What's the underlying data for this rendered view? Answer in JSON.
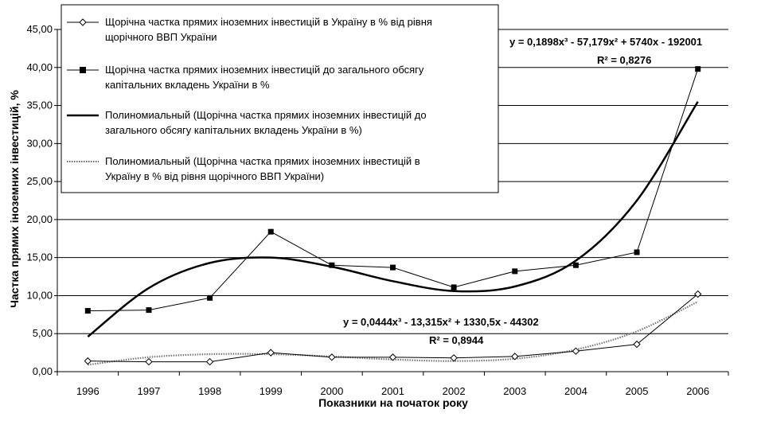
{
  "chart_data": {
    "type": "line",
    "title": "",
    "xlabel": "Показники на початок року",
    "ylabel": "Частка прямих іноземних інвестицій, %",
    "ylim": [
      0,
      45
    ],
    "y_ticks": [
      "0,00",
      "5,00",
      "10,00",
      "15,00",
      "20,00",
      "25,00",
      "30,00",
      "35,00",
      "40,00",
      "45,00"
    ],
    "categories": [
      "1996",
      "1997",
      "1998",
      "1999",
      "2000",
      "2001",
      "2002",
      "2003",
      "2004",
      "2005",
      "2006"
    ],
    "grid": "horizontal",
    "legend_position": "top-left",
    "series": [
      {
        "name": "Щорічна частка прямих іноземних інвестицій в Україну в % від рівня щорічного ВВП України",
        "legend_lines": [
          "Щорічна частка прямих іноземних інвестицій в Україну в % від рівня",
          "щорічного ВВП України"
        ],
        "marker": "diamond-open",
        "values": [
          1.4,
          1.3,
          1.3,
          2.5,
          1.9,
          1.9,
          1.8,
          2.0,
          2.7,
          3.6,
          10.2
        ]
      },
      {
        "name": "Щорічна частка прямих іноземних інвестицій до загального обсягу капітальних вкладень України в %",
        "legend_lines": [
          "Щорічна частка прямих іноземних інвестицій до загального обсягу",
          "капітальних вкладень України в %"
        ],
        "marker": "square-filled",
        "values": [
          8.0,
          8.1,
          9.7,
          18.4,
          14.0,
          13.7,
          11.1,
          13.2,
          14.0,
          15.7,
          39.8
        ]
      },
      {
        "name": "Полиномиальный (Щорічна частка прямих іноземних інвестицій до загального обсягу капітальних вкладень України в %)",
        "legend_lines": [
          "Полиномиальный (Щорічна частка прямих іноземних інвестицій до",
          "загального обсягу капітальних вкладень України в %)"
        ],
        "trendline": true,
        "values": [
          4.6,
          11.0,
          14.3,
          15.0,
          13.8,
          11.9,
          10.6,
          11.2,
          14.6,
          22.5,
          35.5
        ]
      },
      {
        "name": "Полиномиальный (Щорічна частка прямих іноземних інвестицій в Україну в % від рівня щорічного ВВП України)",
        "legend_lines": [
          "Полиномиальный (Щорічна частка прямих іноземних інвестицій в",
          "Україну в % від рівня щорічного ВВП України)"
        ],
        "trendline": true,
        "dotted": true,
        "values": [
          0.9,
          1.9,
          2.3,
          2.3,
          2.0,
          1.6,
          1.4,
          1.7,
          2.9,
          5.3,
          9.2
        ]
      }
    ],
    "annotations": {
      "eq1": {
        "equation": "y = 0,1898x³ - 57,179x² + 5740x - 192001",
        "r2_label": "R² = 0,8276"
      },
      "eq2": {
        "equation": "y = 0,0444x³ - 13,315x² + 1330,5x - 44302",
        "r2_label": "R² = 0,8944"
      }
    }
  }
}
